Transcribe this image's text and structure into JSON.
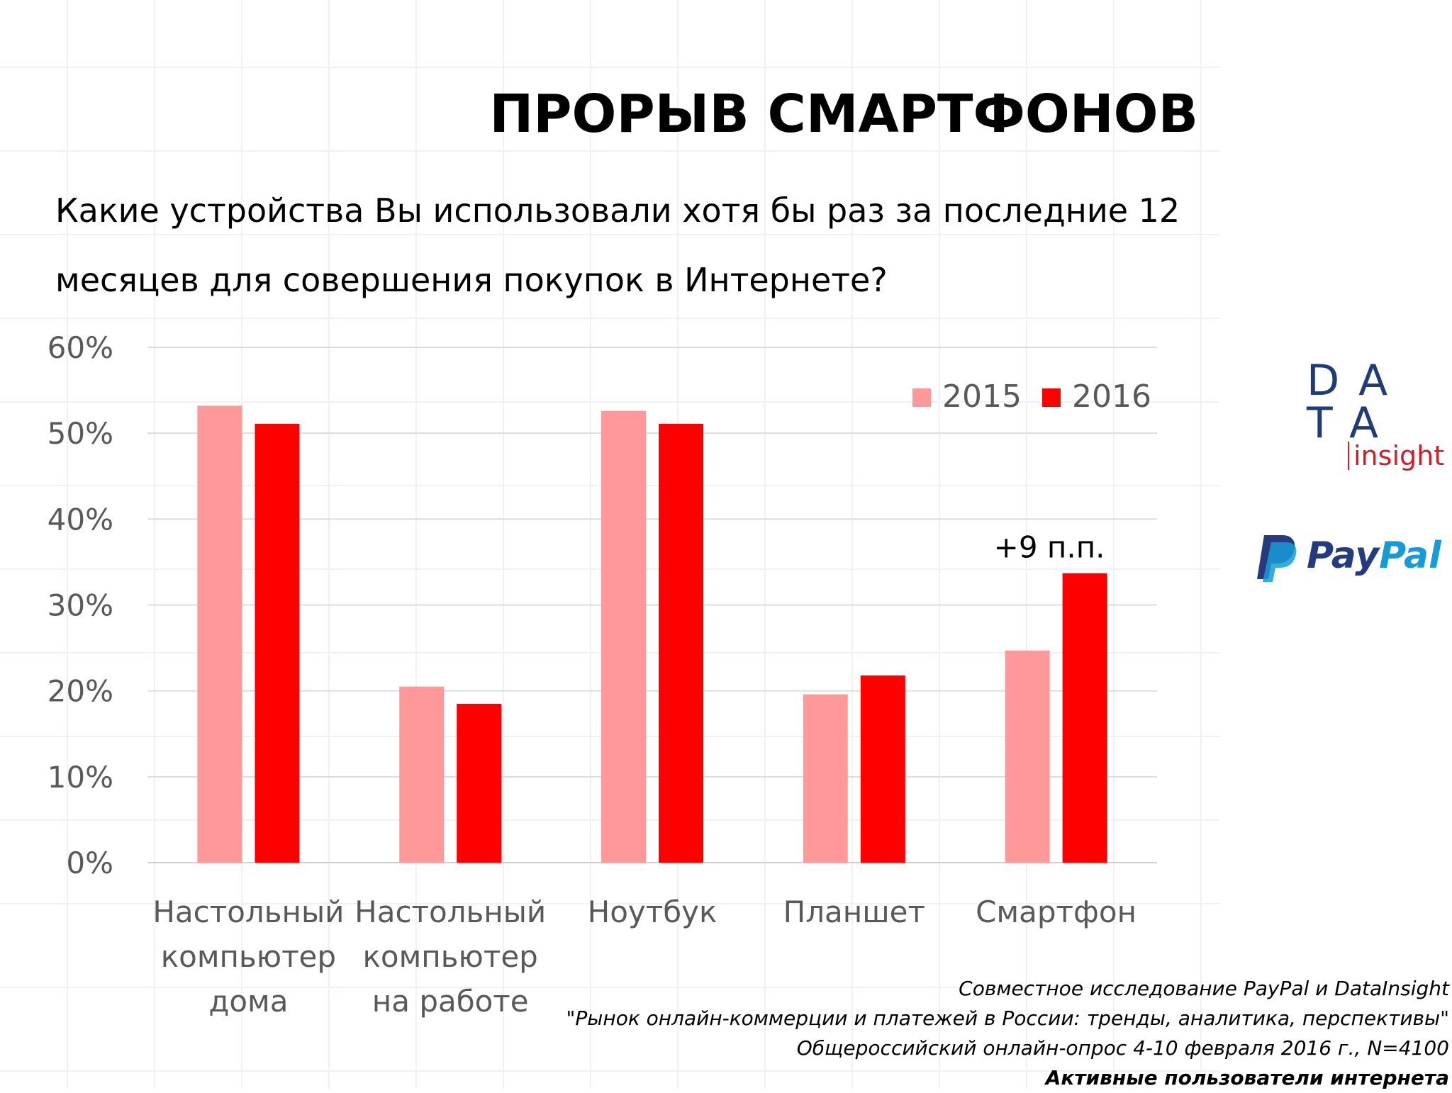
{
  "slide": {
    "title": "ПРОРЫВ СМАРТФОНОВ",
    "question": "Какие устройства Вы использовали хотя бы раз за последние 12 месяцев для совершения покупок в Интернете?"
  },
  "logos": {
    "datainsight_row1": "DA",
    "datainsight_row2": "TA",
    "datainsight_sub": "insight",
    "paypal_part1": "Pay",
    "paypal_part2": "Pal",
    "paypal_color_dark": "#253b80",
    "paypal_color_light": "#179bd7"
  },
  "source": {
    "line1": "Совместное исследование PayPal и DataInsight",
    "line2": "\"Рынок онлайн-коммерции и платежей в России: тренды, аналитика, перспективы\"",
    "line3": "Общероссийский онлайн-опрос 4-10 февраля 2016 г., N=4100",
    "line4": "Активные пользователи интернета"
  },
  "chart_data": {
    "type": "bar",
    "title": "",
    "xlabel": "",
    "ylabel": "",
    "ylim": [
      0,
      60
    ],
    "grid": true,
    "legend_position": "top-right",
    "y_ticks": [
      "0%",
      "10%",
      "20%",
      "30%",
      "40%",
      "50%",
      "60%"
    ],
    "categories": [
      [
        "Настольный",
        "компьютер",
        "дома"
      ],
      [
        "Настольный",
        "компьютер",
        "на работе"
      ],
      [
        "Ноутбук"
      ],
      [
        "Планшет"
      ],
      [
        "Смартфон"
      ]
    ],
    "series": [
      {
        "name": "2015",
        "color": "#ff9999",
        "values": [
          53.2,
          20.5,
          52.6,
          19.6,
          24.7
        ]
      },
      {
        "name": "2016",
        "color": "#ff0000",
        "values": [
          51.1,
          18.5,
          51.1,
          21.8,
          33.7
        ]
      }
    ],
    "annotation": {
      "text": "+9 п.п.",
      "category_index": 4,
      "series_index": 1
    }
  }
}
